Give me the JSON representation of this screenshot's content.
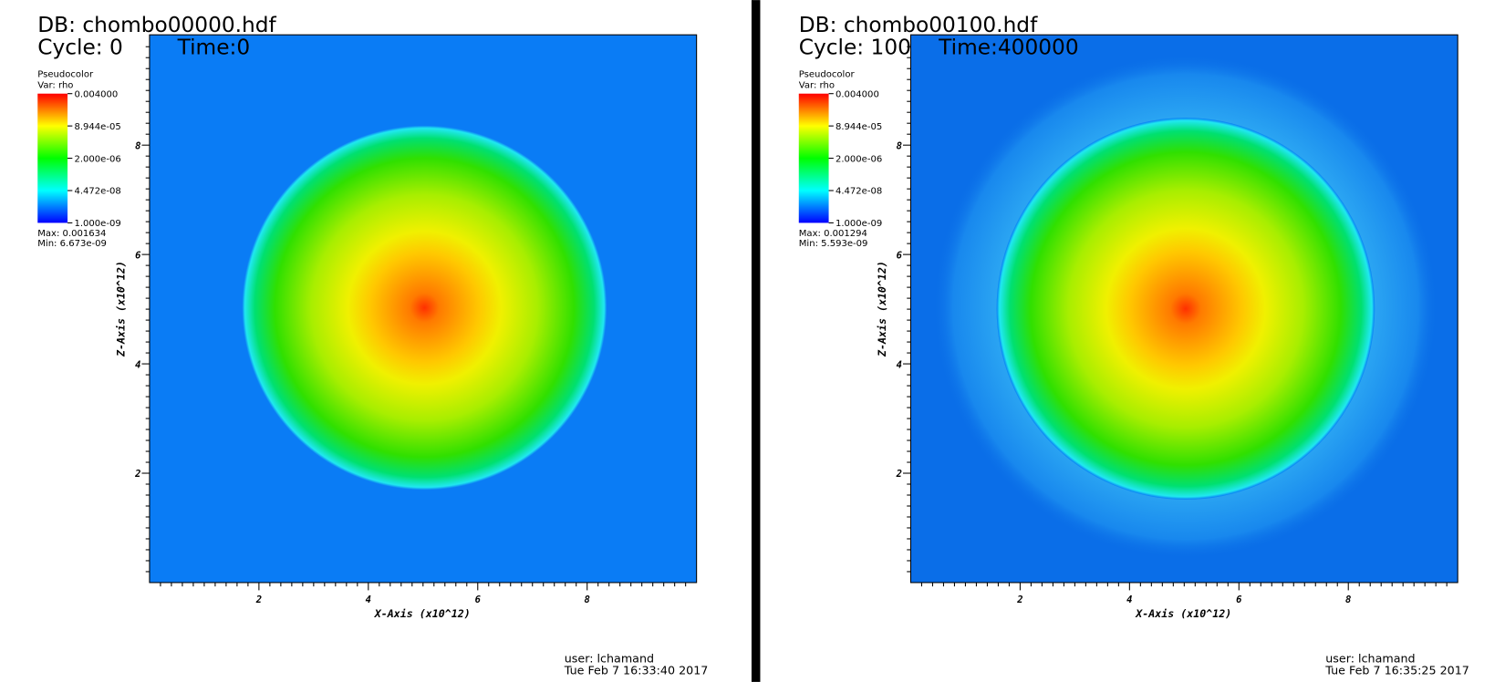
{
  "panels": [
    {
      "db": "DB: chombo00000.hdf",
      "cycle": "Cycle: 0",
      "time": "Time:0",
      "legend": {
        "title": "Pseudocolor",
        "var": "Var: rho",
        "labels": [
          "0.004000",
          "8.944e-05",
          "2.000e-06",
          "4.472e-08",
          "1.000e-09"
        ],
        "max": "Max:  0.001634",
        "min": "Min:  6.673e-09"
      },
      "x_axis": "X-Axis (x10^12)",
      "z_axis": "Z-Axis (x10^12)",
      "xticks": [
        "2",
        "4",
        "6",
        "8"
      ],
      "zticks": [
        "2",
        "4",
        "6",
        "8"
      ],
      "user": "user: lchamand",
      "date": "Tue Feb  7 16:33:40 2017"
    },
    {
      "db": "DB: chombo00100.hdf",
      "cycle": "Cycle: 100",
      "time": "Time:400000",
      "legend": {
        "title": "Pseudocolor",
        "var": "Var: rho",
        "labels": [
          "0.004000",
          "8.944e-05",
          "2.000e-06",
          "4.472e-08",
          "1.000e-09"
        ],
        "max": "Max:  0.001294",
        "min": "Min:  5.593e-09"
      },
      "x_axis": "X-Axis (x10^12)",
      "z_axis": "Z-Axis (x10^12)",
      "xticks": [
        "2",
        "4",
        "6",
        "8"
      ],
      "zticks": [
        "2",
        "4",
        "6",
        "8"
      ],
      "user": "user: lchamand",
      "date": "Tue Feb  7 16:35:25 2017"
    }
  ]
}
